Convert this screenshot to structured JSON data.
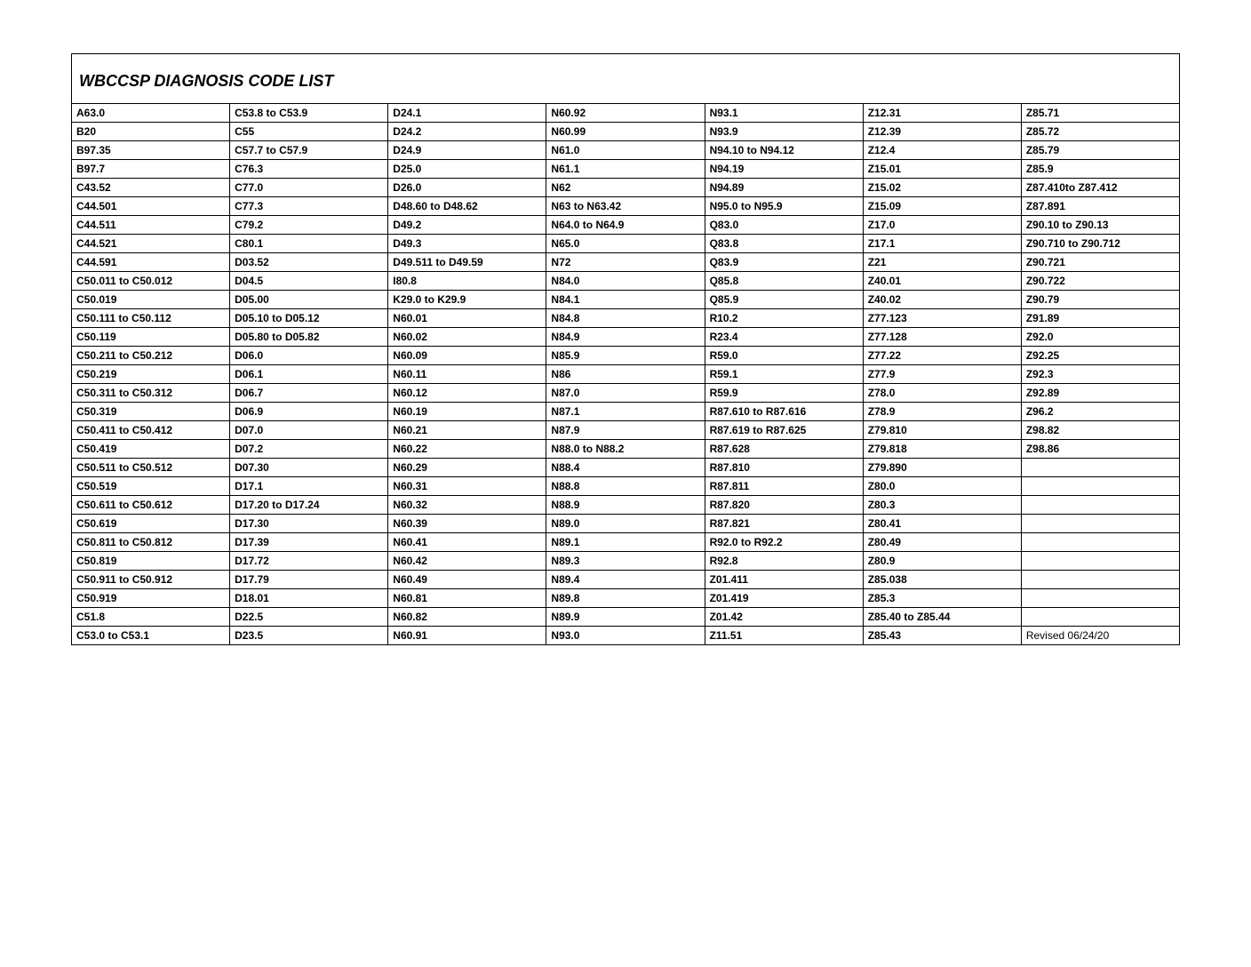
{
  "title": "WBCCSP DIAGNOSIS CODE LIST",
  "footer": "Revised 06/24/20",
  "columns": [
    [
      "A63.0",
      "B20",
      "B97.35",
      "B97.7",
      "C43.52",
      "C44.501",
      "C44.511",
      "C44.521",
      "C44.591",
      "C50.011 to C50.012",
      "C50.019",
      "C50.111 to C50.112",
      "C50.119",
      "C50.211 to C50.212",
      "C50.219",
      "C50.311 to C50.312",
      "C50.319",
      "C50.411 to C50.412",
      "C50.419",
      "C50.511 to C50.512",
      "C50.519",
      "C50.611 to C50.612",
      "C50.619",
      "C50.811 to C50.812",
      "C50.819",
      "C50.911 to C50.912",
      "C50.919",
      "C51.8",
      "C53.0 to C53.1"
    ],
    [
      "C53.8 to C53.9",
      "C55",
      "C57.7 to C57.9",
      "C76.3",
      "C77.0",
      "C77.3",
      "C79.2",
      "C80.1",
      "D03.52",
      "D04.5",
      "D05.00",
      "D05.10 to D05.12",
      "D05.80 to D05.82",
      "D06.0",
      "D06.1",
      "D06.7",
      "D06.9",
      "D07.0",
      "D07.2",
      "D07.30",
      "D17.1",
      "D17.20 to D17.24",
      "D17.30",
      "D17.39",
      "D17.72",
      "D17.79",
      "D18.01",
      "D22.5",
      "D23.5"
    ],
    [
      "D24.1",
      "D24.2",
      "D24.9",
      "D25.0",
      "D26.0",
      "D48.60 to D48.62",
      "D49.2",
      "D49.3",
      "D49.511 to D49.59",
      "I80.8",
      "K29.0 to K29.9",
      "N60.01",
      "N60.02",
      "N60.09",
      "N60.11",
      "N60.12",
      "N60.19",
      "N60.21",
      "N60.22",
      "N60.29",
      "N60.31",
      "N60.32",
      "N60.39",
      "N60.41",
      "N60.42",
      "N60.49",
      "N60.81",
      "N60.82",
      "N60.91"
    ],
    [
      "N60.92",
      "N60.99",
      "N61.0",
      "N61.1",
      "N62",
      "N63 to N63.42",
      "N64.0 to N64.9",
      "N65.0",
      "N72",
      "N84.0",
      "N84.1",
      "N84.8",
      "N84.9",
      "N85.9",
      "N86",
      "N87.0",
      "N87.1",
      "N87.9",
      "N88.0 to N88.2",
      "N88.4",
      "N88.8",
      "N88.9",
      "N89.0",
      "N89.1",
      "N89.3",
      "N89.4",
      "N89.8",
      "N89.9",
      "N93.0"
    ],
    [
      "N93.1",
      "N93.9",
      "N94.10 to N94.12",
      "N94.19",
      "N94.89",
      "N95.0 to N95.9",
      "Q83.0",
      "Q83.8",
      "Q83.9",
      "Q85.8",
      "Q85.9",
      "R10.2",
      "R23.4",
      "R59.0",
      "R59.1",
      "R59.9",
      "R87.610 to R87.616",
      "R87.619 to R87.625",
      "R87.628",
      "R87.810",
      "R87.811",
      "R87.820",
      "R87.821",
      "R92.0 to R92.2",
      "R92.8",
      "Z01.411",
      "Z01.419",
      "Z01.42",
      "Z11.51"
    ],
    [
      "Z12.31",
      "Z12.39",
      "Z12.4",
      "Z15.01",
      "Z15.02",
      "Z15.09",
      "Z17.0",
      "Z17.1",
      "Z21",
      "Z40.01",
      "Z40.02",
      "Z77.123",
      "Z77.128",
      "Z77.22",
      "Z77.9",
      "Z78.0",
      "Z78.9",
      "Z79.810",
      "Z79.818",
      "Z79.890",
      "Z80.0",
      "Z80.3",
      "Z80.41",
      "Z80.49",
      "Z80.9",
      "Z85.038",
      "Z85.3",
      "Z85.40 to Z85.44",
      "Z85.43"
    ],
    [
      "Z85.71",
      "Z85.72",
      "Z85.79",
      "Z85.9",
      "Z87.410to Z87.412",
      "Z87.891",
      "Z90.10 to Z90.13",
      "Z90.710 to Z90.712",
      "Z90.721",
      "Z90.722",
      "Z90.79",
      "Z91.89",
      "Z92.0",
      "Z92.25",
      "Z92.3",
      "Z92.89",
      "Z96.2",
      "Z98.82",
      "Z98.86",
      "",
      "",
      "",
      "",
      "",
      "",
      "",
      "",
      "",
      ""
    ]
  ],
  "num_columns": 7,
  "num_rows": 29
}
